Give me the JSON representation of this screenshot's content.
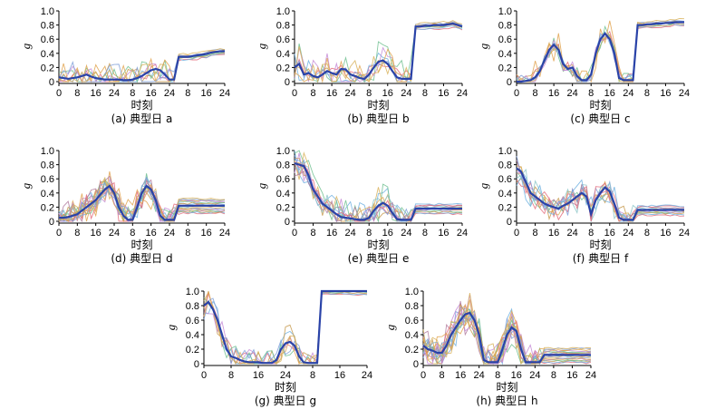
{
  "chart_data": [
    {
      "id": "a",
      "caption": "(a) 典型日 a",
      "type": "line",
      "xlabel": "时刻",
      "ylabel": "g",
      "xticks": [
        "0",
        "8",
        "16",
        "24",
        "8",
        "16",
        "24",
        "8",
        "16",
        "24"
      ],
      "yticks": [
        "0",
        "0.2",
        "0.4",
        "0.6",
        "0.8",
        "1.0"
      ],
      "ylim": [
        0,
        1
      ],
      "bold_series": [
        0.06,
        0.05,
        0.04,
        0.05,
        0.06,
        0.08,
        0.1,
        0.07,
        0.05,
        0.04,
        0.03,
        0.03,
        0.03,
        0.03,
        0.02,
        0.02,
        0.03,
        0.05,
        0.08,
        0.12,
        0.16,
        0.18,
        0.16,
        0.1,
        0.03,
        0.03,
        0.35,
        0.35,
        0.35,
        0.36,
        0.37,
        0.38,
        0.39,
        0.41,
        0.42,
        0.43,
        0.43
      ]
    },
    {
      "id": "b",
      "caption": "(b) 典型日 b",
      "type": "line",
      "xlabel": "时刻",
      "ylabel": "g",
      "xticks": [
        "0",
        "8",
        "16",
        "24",
        "8",
        "16",
        "24",
        "8",
        "16",
        "24"
      ],
      "yticks": [
        "0",
        "0.2",
        "0.4",
        "0.6",
        "0.8",
        "1.0"
      ],
      "ylim": [
        0,
        1
      ],
      "bold_series": [
        0.2,
        0.25,
        0.1,
        0.12,
        0.08,
        0.06,
        0.1,
        0.15,
        0.12,
        0.1,
        0.18,
        0.17,
        0.1,
        0.08,
        0.05,
        0.04,
        0.1,
        0.2,
        0.28,
        0.3,
        0.25,
        0.15,
        0.06,
        0.04,
        0.04,
        0.04,
        0.78,
        0.78,
        0.79,
        0.79,
        0.8,
        0.8,
        0.8,
        0.81,
        0.82,
        0.8,
        0.78
      ]
    },
    {
      "id": "c",
      "caption": "(c) 典型日 c",
      "type": "line",
      "xlabel": "时刻",
      "ylabel": "g",
      "xticks": [
        "0",
        "8",
        "16",
        "24",
        "8",
        "16",
        "24",
        "8",
        "16",
        "24"
      ],
      "yticks": [
        "0",
        "0.2",
        "0.4",
        "0.6",
        "0.8",
        "1.0"
      ],
      "ylim": [
        0,
        1
      ],
      "bold_series": [
        0.0,
        0.0,
        0.01,
        0.02,
        0.06,
        0.15,
        0.3,
        0.45,
        0.52,
        0.45,
        0.25,
        0.18,
        0.2,
        0.08,
        0.02,
        0.02,
        0.1,
        0.4,
        0.6,
        0.68,
        0.6,
        0.4,
        0.05,
        0.02,
        0.02,
        0.02,
        0.8,
        0.8,
        0.81,
        0.81,
        0.82,
        0.82,
        0.83,
        0.83,
        0.84,
        0.84,
        0.84
      ]
    },
    {
      "id": "d",
      "caption": "(d) 典型日 d",
      "type": "line",
      "xlabel": "时刻",
      "ylabel": "g",
      "xticks": [
        "0",
        "8",
        "16",
        "24",
        "8",
        "16",
        "24",
        "8",
        "16",
        "24"
      ],
      "yticks": [
        "0",
        "0.2",
        "0.4",
        "0.6",
        "0.8",
        "1.0"
      ],
      "ylim": [
        0,
        1
      ],
      "bold_series": [
        0.05,
        0.05,
        0.06,
        0.08,
        0.1,
        0.15,
        0.2,
        0.25,
        0.3,
        0.38,
        0.45,
        0.5,
        0.4,
        0.2,
        0.08,
        0.02,
        0.02,
        0.2,
        0.4,
        0.5,
        0.45,
        0.3,
        0.08,
        0.02,
        0.02,
        0.02,
        0.22,
        0.22,
        0.22,
        0.22,
        0.22,
        0.22,
        0.22,
        0.22,
        0.22,
        0.22,
        0.22
      ]
    },
    {
      "id": "e",
      "caption": "(e) 典型日 e",
      "type": "line",
      "xlabel": "时刻",
      "ylabel": "g",
      "xticks": [
        "0",
        "8",
        "16",
        "24",
        "8",
        "16",
        "24",
        "8",
        "16",
        "24"
      ],
      "yticks": [
        "0",
        "0.2",
        "0.4",
        "0.6",
        "0.8",
        "1.0"
      ],
      "ylim": [
        0,
        1
      ],
      "bold_series": [
        0.82,
        0.8,
        0.78,
        0.65,
        0.45,
        0.35,
        0.25,
        0.2,
        0.15,
        0.1,
        0.06,
        0.05,
        0.04,
        0.03,
        0.02,
        0.02,
        0.05,
        0.15,
        0.22,
        0.26,
        0.22,
        0.12,
        0.03,
        0.02,
        0.02,
        0.02,
        0.18,
        0.18,
        0.18,
        0.18,
        0.18,
        0.18,
        0.18,
        0.18,
        0.18,
        0.18,
        0.18
      ]
    },
    {
      "id": "f",
      "caption": "(f) 典型日 f",
      "type": "line",
      "xlabel": "时刻",
      "ylabel": "g",
      "xticks": [
        "0",
        "8",
        "16",
        "24",
        "8",
        "16",
        "24",
        "8",
        "16",
        "24"
      ],
      "yticks": [
        "0",
        "0.2",
        "0.4",
        "0.6",
        "0.8",
        "1.0"
      ],
      "ylim": [
        0,
        1
      ],
      "bold_series": [
        0.75,
        0.7,
        0.55,
        0.4,
        0.35,
        0.3,
        0.25,
        0.22,
        0.2,
        0.18,
        0.22,
        0.25,
        0.3,
        0.35,
        0.4,
        0.35,
        0.1,
        0.3,
        0.4,
        0.48,
        0.42,
        0.25,
        0.05,
        0.02,
        0.02,
        0.02,
        0.16,
        0.16,
        0.16,
        0.16,
        0.16,
        0.16,
        0.16,
        0.16,
        0.16,
        0.16,
        0.16
      ]
    },
    {
      "id": "g",
      "caption": "(g) 典型日 g",
      "type": "line",
      "xlabel": "时刻",
      "ylabel": "g",
      "xticks": [
        "0",
        "8",
        "16",
        "24",
        "8",
        "16",
        "24"
      ],
      "yticks": [
        "0",
        "0.2",
        "0.4",
        "0.6",
        "0.8",
        "1.0"
      ],
      "ylim": [
        0,
        1
      ],
      "bold_series": [
        0.8,
        0.85,
        0.75,
        0.6,
        0.4,
        0.2,
        0.1,
        0.08,
        0.05,
        0.03,
        0.02,
        0.02,
        0.02,
        0.01,
        0.01,
        0.01,
        0.05,
        0.2,
        0.28,
        0.3,
        0.25,
        0.1,
        0.02,
        0.01,
        0.01,
        0.01,
        1.0,
        1.0,
        1.0,
        1.0,
        1.0,
        1.0,
        1.0,
        1.0,
        1.0,
        1.0,
        1.0
      ]
    },
    {
      "id": "h",
      "caption": "(h) 典型日 h",
      "type": "line",
      "xlabel": "时刻",
      "ylabel": "g",
      "xticks": [
        "0",
        "8",
        "16",
        "24",
        "8",
        "16",
        "24",
        "8",
        "16",
        "24"
      ],
      "yticks": [
        "0",
        "0.2",
        "0.4",
        "0.6",
        "0.8",
        "1.0"
      ],
      "ylim": [
        0,
        1
      ],
      "bold_series": [
        0.25,
        0.2,
        0.18,
        0.15,
        0.15,
        0.25,
        0.4,
        0.5,
        0.6,
        0.68,
        0.7,
        0.6,
        0.4,
        0.05,
        0.02,
        0.02,
        0.02,
        0.2,
        0.4,
        0.5,
        0.45,
        0.2,
        0.02,
        0.02,
        0.02,
        0.02,
        0.12,
        0.12,
        0.12,
        0.12,
        0.12,
        0.12,
        0.12,
        0.12,
        0.12,
        0.12,
        0.12
      ]
    }
  ],
  "colors": {
    "bold": "#2a43a8",
    "thin": [
      "#e46a7a",
      "#6fb0e0",
      "#c79a4e",
      "#6fbf8f",
      "#c68ad6",
      "#e0a24c",
      "#7f9fd8",
      "#d8b25a",
      "#8cc5c8",
      "#b07a9e"
    ]
  }
}
